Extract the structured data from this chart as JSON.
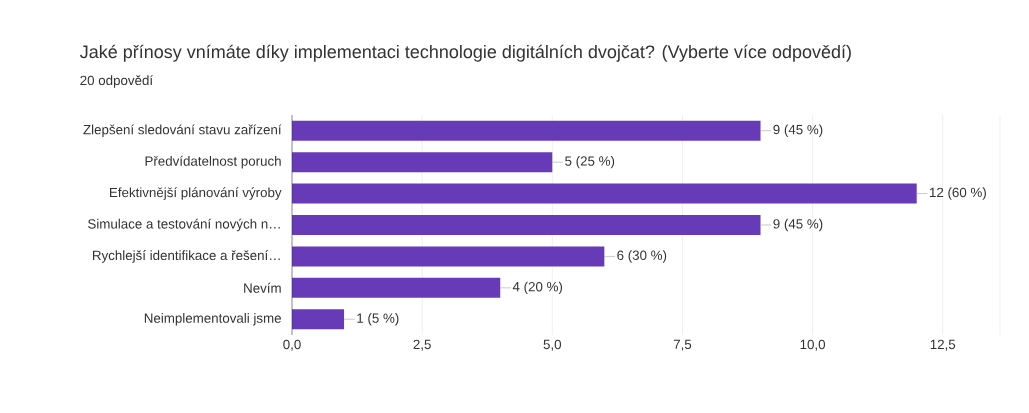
{
  "chart_data": {
    "type": "bar",
    "orientation": "horizontal",
    "title": "Jaké přínosy vnímáte díky implementaci technologie digitálních dvojčat? (Vyberte více odpovědí)",
    "subtitle": "20 odpovědí",
    "categories": [
      "Zlepšení sledování stavu zařízení",
      "Předvídatelnost poruch",
      "Efektivnější plánování výroby",
      "Simulace a testování nových n…",
      "Rychlejší identifikace a řešení…",
      "Nevím",
      "Neimplementovali jsme"
    ],
    "values": [
      9,
      5,
      12,
      9,
      6,
      4,
      1
    ],
    "value_labels": [
      "9 (45 %)",
      "5 (25 %)",
      "12 (60 %)",
      "9 (45 %)",
      "6 (30 %)",
      "4 (20 %)",
      "1 (5 %)"
    ],
    "color": "#673ab7",
    "xlim": [
      0,
      13.6
    ],
    "xticks": [
      {
        "value": 0,
        "label": "0,0"
      },
      {
        "value": 2.5,
        "label": "2,5"
      },
      {
        "value": 5,
        "label": "5,0"
      },
      {
        "value": 7.5,
        "label": "7,5"
      },
      {
        "value": 10,
        "label": "10,0"
      },
      {
        "value": 12.5,
        "label": "12,5"
      }
    ],
    "grid": "x"
  }
}
